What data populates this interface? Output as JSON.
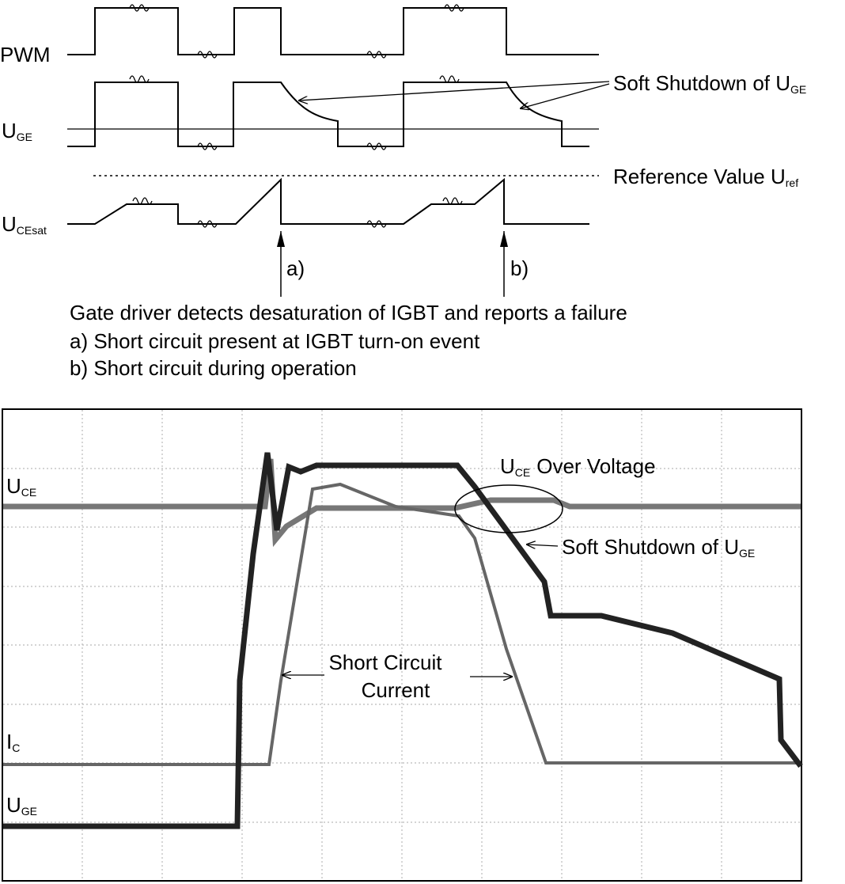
{
  "timing_diagram": {
    "signals": [
      {
        "label": "PWM"
      },
      {
        "label": "U",
        "sub": "GE"
      },
      {
        "label": "U",
        "sub": "CEsat"
      }
    ],
    "soft_shutdown": {
      "text": "Soft Shutdown of U",
      "sub": "GE"
    },
    "reference": {
      "text": "Reference Value U",
      "sub": "ref"
    },
    "markers": [
      "a)",
      "b)"
    ],
    "caption": [
      "Gate driver detects desaturation of IGBT and reports a failure",
      "a) Short circuit present at IGBT turn-on event",
      "b) Short circuit during operation"
    ]
  },
  "oscilloscope": {
    "traces": [
      {
        "label": "U",
        "sub": "CE"
      },
      {
        "label": "I",
        "sub": "C"
      },
      {
        "label": "U",
        "sub": "GE"
      }
    ],
    "over_voltage": {
      "label": "U",
      "sub": "CE",
      "text": "Over Voltage"
    },
    "soft_shutdown": {
      "text": "Soft Shutdown of U",
      "sub": "GE"
    },
    "short_circuit": [
      "Short Circuit",
      "Current"
    ]
  }
}
